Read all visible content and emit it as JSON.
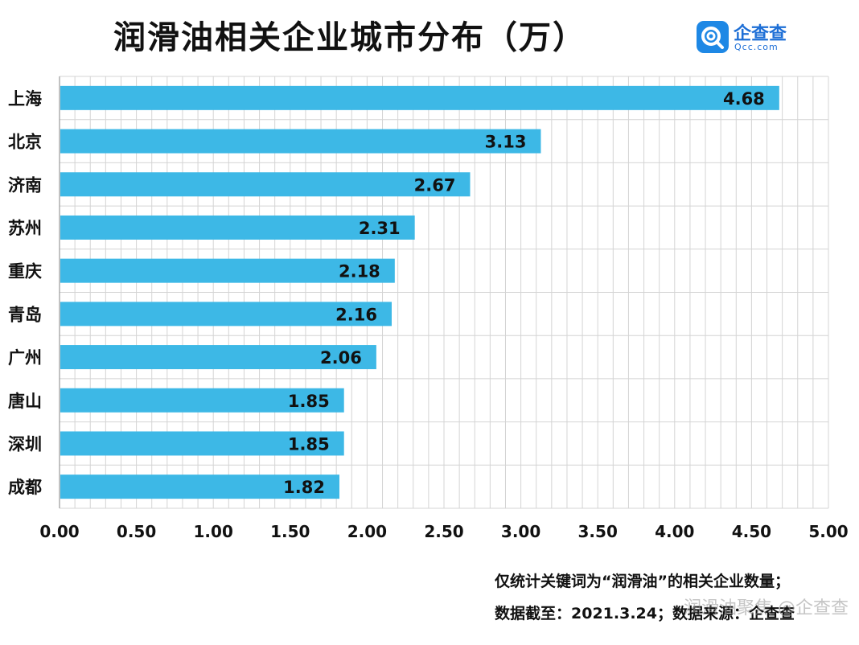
{
  "header": {
    "title": "润滑油相关企业城市分布（万）",
    "logo_name": "企查查",
    "logo_sub": "Qcc.com"
  },
  "notes": {
    "line1": "仅统计关键词为“润滑油”的相关企业数量；",
    "line2": "数据截至：2021.3.24；数据来源：企查查"
  },
  "watermark": "润滑油聚焦 @企查查",
  "colors": {
    "bar": "#3db8e6",
    "grid": "#d4d4d4",
    "axis": "#999999"
  },
  "chart_data": {
    "type": "bar",
    "orientation": "horizontal",
    "title": "润滑油相关企业城市分布（万）",
    "categories": [
      "上海",
      "北京",
      "济南",
      "苏州",
      "重庆",
      "青岛",
      "广州",
      "唐山",
      "深圳",
      "成都"
    ],
    "values": [
      4.68,
      3.13,
      2.67,
      2.31,
      2.18,
      2.16,
      2.06,
      1.85,
      1.85,
      1.82
    ],
    "value_labels": [
      "4.68",
      "3.13",
      "2.67",
      "2.31",
      "2.18",
      "2.16",
      "2.06",
      "1.85",
      "1.85",
      "1.82"
    ],
    "xticks": [
      "0.00",
      "0.50",
      "1.00",
      "1.50",
      "2.00",
      "2.50",
      "3.00",
      "3.50",
      "4.00",
      "4.50",
      "5.00"
    ],
    "xlim": [
      0,
      5
    ],
    "grid": true,
    "legend": "none"
  }
}
